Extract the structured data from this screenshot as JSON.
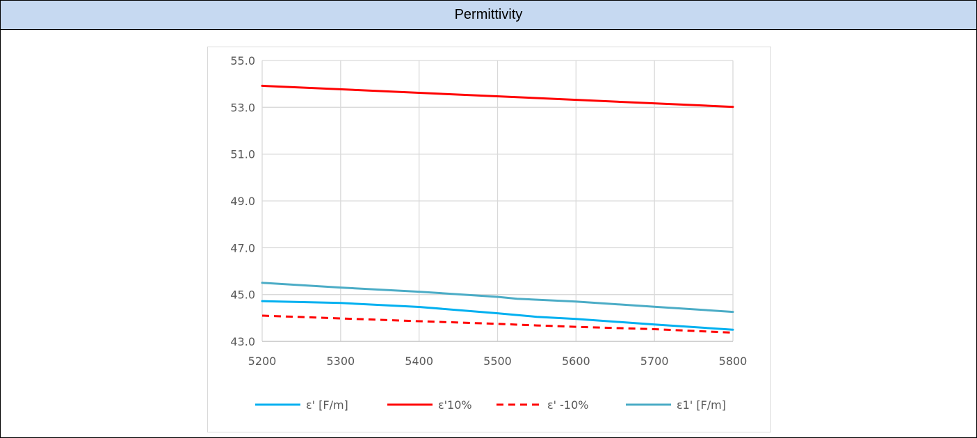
{
  "header": {
    "title": "Permittivity"
  },
  "chart_data": {
    "type": "line",
    "title": "",
    "xlabel": "",
    "ylabel": "",
    "xlim": [
      5200,
      5800
    ],
    "ylim": [
      43.0,
      55.0
    ],
    "xticks": [
      5200,
      5300,
      5400,
      5500,
      5600,
      5700,
      5800
    ],
    "yticks": [
      43.0,
      45.0,
      47.0,
      49.0,
      51.0,
      53.0,
      55.0
    ],
    "ytick_labels": [
      "43.0",
      "45.0",
      "47.0",
      "49.0",
      "51.0",
      "53.0",
      "55.0"
    ],
    "grid": true,
    "legend_position": "bottom",
    "series": [
      {
        "name": "ε' [F/m]",
        "color": "#00b0f0",
        "dash": "solid",
        "x": [
          5200,
          5300,
          5400,
          5500,
          5550,
          5600,
          5700,
          5800
        ],
        "y": [
          44.72,
          44.64,
          44.47,
          44.2,
          44.05,
          43.96,
          43.72,
          43.5
        ]
      },
      {
        "name": "ε'10%",
        "color": "#ff0000",
        "dash": "solid",
        "x": [
          5200,
          5800
        ],
        "y": [
          53.92,
          53.02
        ]
      },
      {
        "name": "ε' -10%",
        "color": "#ff0000",
        "dash": "dashed",
        "x": [
          5200,
          5300,
          5400,
          5500,
          5550,
          5600,
          5700,
          5800
        ],
        "y": [
          44.1,
          43.98,
          43.86,
          43.75,
          43.68,
          43.62,
          43.52,
          43.37
        ]
      },
      {
        "name": "ε1' [F/m]",
        "color": "#4bacc6",
        "dash": "solid",
        "x": [
          5200,
          5300,
          5400,
          5500,
          5525,
          5600,
          5700,
          5800
        ],
        "y": [
          45.5,
          45.3,
          45.12,
          44.9,
          44.82,
          44.7,
          44.48,
          44.26
        ]
      }
    ]
  }
}
